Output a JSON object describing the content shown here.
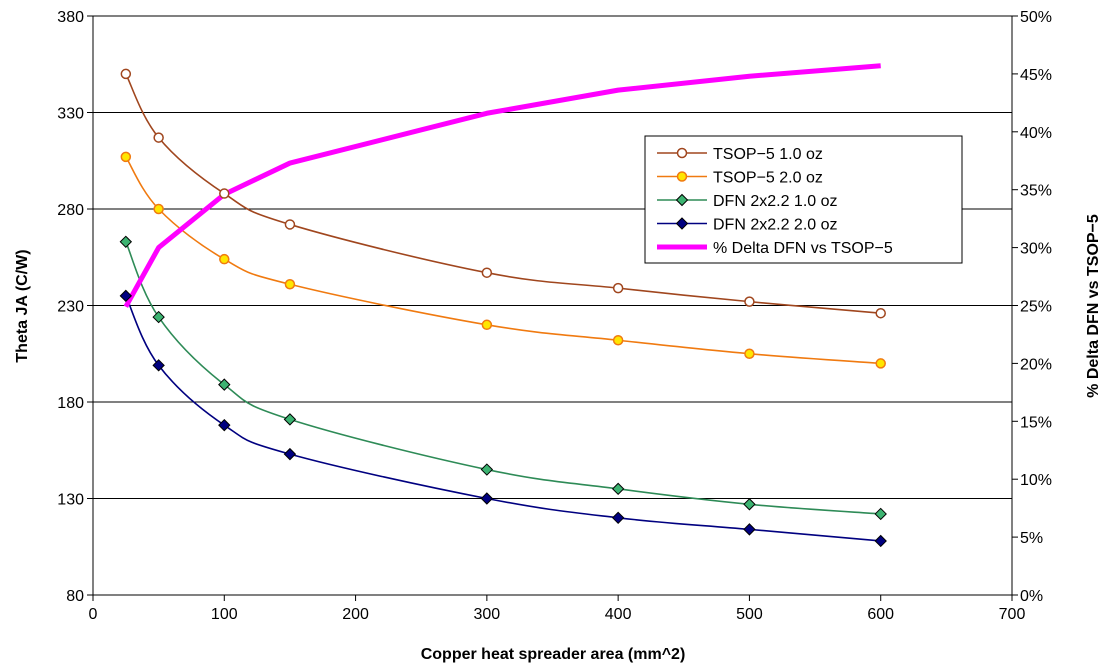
{
  "chart_data": {
    "type": "line",
    "xlabel": "Copper heat spreader area (mm^2)",
    "ylabel": "Theta JA (C/W)",
    "y2label": "% Delta DFN vs TSOP−5",
    "xlim": [
      0,
      700
    ],
    "ylim": [
      80,
      380
    ],
    "y2lim": [
      0,
      50
    ],
    "x_ticks": [
      "0",
      "100",
      "200",
      "300",
      "400",
      "500",
      "600",
      "700"
    ],
    "y_ticks": [
      "80",
      "130",
      "180",
      "230",
      "280",
      "330",
      "380"
    ],
    "y2_ticks": [
      "0%",
      "5%",
      "10%",
      "15%",
      "20%",
      "25%",
      "30%",
      "35%",
      "40%",
      "45%",
      "50%"
    ],
    "grid": "horizontal",
    "legend_position": "right",
    "series": [
      {
        "name": "TSOP−5 1.0 oz",
        "axis": "left",
        "color": "#a0461e",
        "marker": "circle",
        "marker_fill": "#ffffff",
        "x": [
          25,
          50,
          100,
          150,
          300,
          400,
          500,
          600
        ],
        "y": [
          350,
          317,
          288,
          272,
          247,
          239,
          232,
          226
        ]
      },
      {
        "name": "TSOP−5 2.0 oz",
        "axis": "left",
        "color": "#f07a10",
        "marker": "circle",
        "marker_fill": "#ffe600",
        "x": [
          25,
          50,
          100,
          150,
          300,
          400,
          500,
          600
        ],
        "y": [
          307,
          280,
          254,
          241,
          220,
          212,
          205,
          200
        ]
      },
      {
        "name": "DFN 2x2.2 1.0 oz",
        "axis": "left",
        "color": "#2e8b57",
        "marker": "diamond",
        "marker_fill": "#3cb371",
        "x": [
          25,
          50,
          100,
          150,
          300,
          400,
          500,
          600
        ],
        "y": [
          263,
          224,
          189,
          171,
          145,
          135,
          127,
          122
        ]
      },
      {
        "name": "DFN 2x2.2 2.0 oz",
        "axis": "left",
        "color": "#000080",
        "marker": "diamond",
        "marker_fill": "#000080",
        "x": [
          25,
          50,
          100,
          150,
          300,
          400,
          500,
          600
        ],
        "y": [
          235,
          199,
          168,
          153,
          130,
          120,
          114,
          108
        ]
      },
      {
        "name": "% Delta DFN vs TSOP−5",
        "axis": "right",
        "color": "#ff00ff",
        "marker": "none",
        "x": [
          25,
          50,
          100,
          150,
          300,
          400,
          500,
          600
        ],
        "y": [
          24.9,
          30.0,
          34.6,
          37.3,
          41.6,
          43.6,
          44.8,
          45.7
        ]
      }
    ]
  }
}
